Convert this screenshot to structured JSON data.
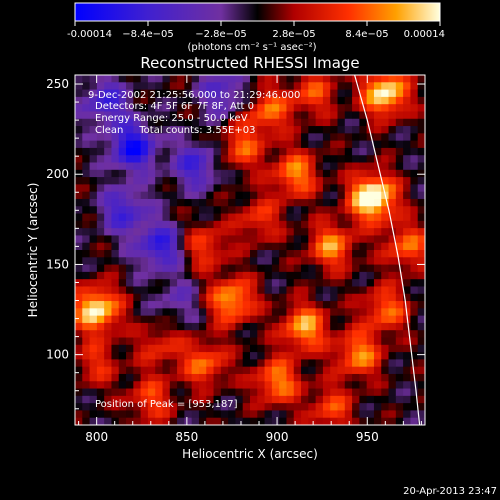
{
  "chart_data": {
    "type": "heatmap",
    "title": "Reconstructed RHESSI Image",
    "xlabel": "Heliocentric X (arcsec)",
    "ylabel": "Heliocentric Y (arcsec)",
    "xlim": [
      788,
      982
    ],
    "ylim": [
      61,
      255
    ],
    "xticks": [
      800,
      850,
      900,
      950
    ],
    "yticks": [
      100,
      150,
      200,
      250
    ],
    "colorbar": {
      "range": [
        -0.00014,
        0.00014
      ],
      "tick_values": [
        -0.00014,
        -8.4e-05,
        -2.8e-05,
        2.8e-05,
        8.4e-05,
        0.00014
      ],
      "tick_labels": [
        "-0.00014",
        "−8.4e−05",
        "−2.8e−05",
        "2.8e−05",
        "8.4e−05",
        "0.00014"
      ],
      "units_label": "(photons cm⁻² s⁻¹ asec⁻²)"
    },
    "annotations": [
      "9-Dec-2002 21:25:56.000 to 21:29:46.000",
      "Detectors: 4F 5F 6F 7F 8F, Att 0",
      "Energy Range: 25.0 - 50.0 keV",
      "Clean     Total counts: 3.55E+03",
      "Position of Peak = [953,187]"
    ],
    "peak": [
      953,
      187
    ],
    "limb_curve": [
      [
        943,
        255
      ],
      [
        950,
        230
      ],
      [
        956,
        205
      ],
      [
        962,
        180
      ],
      [
        967,
        155
      ],
      [
        971,
        130
      ],
      [
        974,
        105
      ],
      [
        977,
        80
      ],
      [
        979,
        61
      ]
    ],
    "blobs": [
      {
        "x": 960,
        "y": 245,
        "v": 1.0
      },
      {
        "x": 953,
        "y": 187,
        "v": 1.2
      },
      {
        "x": 930,
        "y": 160,
        "v": 0.7
      },
      {
        "x": 910,
        "y": 200,
        "v": 0.7
      },
      {
        "x": 895,
        "y": 235,
        "v": 0.6
      },
      {
        "x": 880,
        "y": 215,
        "v": 0.55
      },
      {
        "x": 875,
        "y": 130,
        "v": 0.8
      },
      {
        "x": 860,
        "y": 160,
        "v": 0.5
      },
      {
        "x": 915,
        "y": 115,
        "v": 0.8
      },
      {
        "x": 945,
        "y": 100,
        "v": 0.7
      },
      {
        "x": 960,
        "y": 125,
        "v": 0.6
      },
      {
        "x": 900,
        "y": 85,
        "v": 0.7
      },
      {
        "x": 860,
        "y": 95,
        "v": 0.6
      },
      {
        "x": 800,
        "y": 125,
        "v": 1.0
      },
      {
        "x": 800,
        "y": 95,
        "v": 0.4
      },
      {
        "x": 830,
        "y": 75,
        "v": 0.5
      },
      {
        "x": 930,
        "y": 70,
        "v": 0.5
      },
      {
        "x": 972,
        "y": 160,
        "v": 0.6
      },
      {
        "x": 835,
        "y": 105,
        "v": 0.4
      },
      {
        "x": 890,
        "y": 175,
        "v": 0.45
      },
      {
        "x": 920,
        "y": 245,
        "v": 0.5
      },
      {
        "x": 820,
        "y": 215,
        "v": -0.9
      },
      {
        "x": 835,
        "y": 160,
        "v": -0.7
      },
      {
        "x": 815,
        "y": 180,
        "v": -0.6
      },
      {
        "x": 855,
        "y": 205,
        "v": -0.6
      },
      {
        "x": 805,
        "y": 240,
        "v": -0.6
      },
      {
        "x": 870,
        "y": 245,
        "v": -0.5
      },
      {
        "x": 845,
        "y": 130,
        "v": -0.3
      }
    ]
  },
  "footer": {
    "timestamp": "20-Apr-2013 23:47"
  }
}
